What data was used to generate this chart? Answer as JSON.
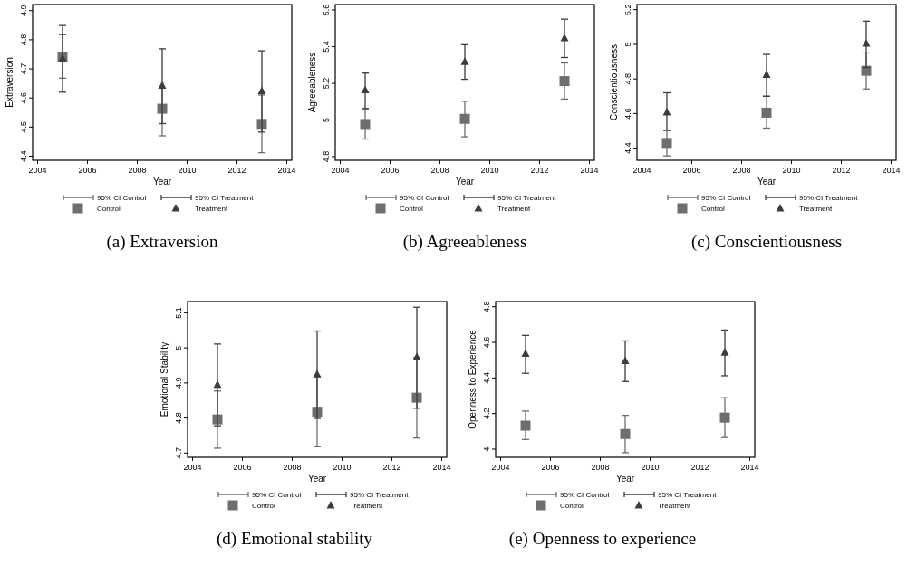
{
  "chart_data": [
    {
      "type": "scatter",
      "title": "(a) Extraversion",
      "xlabel": "Year",
      "ylabel": "Extraversion",
      "annotations": [
        "95% CI Control",
        "95% CI Treatment"
      ],
      "x": [
        2005,
        2009,
        2013
      ],
      "xlim": [
        2003.8,
        2014.2
      ],
      "xticks": [
        2004,
        2006,
        2008,
        2010,
        2012,
        2014
      ],
      "ylim": [
        4.386,
        4.921
      ],
      "yticks": [
        4.4,
        4.5,
        4.6,
        4.7,
        4.8,
        4.9
      ],
      "legend": "bottom",
      "series": [
        {
          "name": "Control",
          "color": "#6e6e6e",
          "marker": "square",
          "values": [
            4.742,
            4.563,
            4.511
          ],
          "errors": [
            [
              4.668,
              4.817
            ],
            [
              4.47,
              4.655
            ],
            [
              4.412,
              4.61
            ]
          ]
        },
        {
          "name": "Treatment",
          "color": "#3c3c3c",
          "marker": "triangle",
          "values": [
            4.737,
            4.643,
            4.624
          ],
          "errors": [
            [
              4.62,
              4.849
            ],
            [
              4.512,
              4.769
            ],
            [
              4.483,
              4.762
            ]
          ]
        }
      ]
    },
    {
      "type": "scatter",
      "title": "(b) Agreeableness",
      "xlabel": "Year",
      "ylabel": "Agreeableness",
      "annotations": [
        "95% CI Control",
        "95% CI Treatment"
      ],
      "x": [
        2005,
        2009,
        2013
      ],
      "xlim": [
        2003.8,
        2014.2
      ],
      "xticks": [
        2004,
        2006,
        2008,
        2010,
        2012,
        2014
      ],
      "ylim": [
        4.78,
        5.63
      ],
      "yticks": [
        4.8,
        5,
        5.2,
        5.4,
        5.6
      ],
      "legend": "bottom",
      "series": [
        {
          "name": "Control",
          "color": "#6e6e6e",
          "marker": "square",
          "values": [
            4.978,
            5.006,
            5.212
          ],
          "errors": [
            [
              4.896,
              5.062
            ],
            [
              4.908,
              5.102
            ],
            [
              5.114,
              5.311
            ]
          ]
        },
        {
          "name": "Treatment",
          "color": "#3c3c3c",
          "marker": "triangle",
          "values": [
            5.163,
            5.318,
            5.447
          ],
          "errors": [
            [
              5.062,
              5.256
            ],
            [
              5.222,
              5.411
            ],
            [
              5.341,
              5.55
            ]
          ]
        }
      ]
    },
    {
      "type": "scatter",
      "title": "(c) Conscientiousness",
      "xlabel": "Year",
      "ylabel": "Conscientiousness",
      "annotations": [
        "95% CI Control",
        "95% CI Treatment"
      ],
      "x": [
        2005,
        2009,
        2013
      ],
      "xlim": [
        2003.8,
        2014.2
      ],
      "xticks": [
        2004,
        2006,
        2008,
        2010,
        2012,
        2014
      ],
      "ylim": [
        4.33,
        5.23
      ],
      "yticks": [
        4.4,
        4.6,
        4.8,
        5,
        5.2
      ],
      "legend": "bottom",
      "series": [
        {
          "name": "Control",
          "color": "#6e6e6e",
          "marker": "square",
          "values": [
            4.43,
            4.605,
            4.847
          ],
          "errors": [
            [
              4.355,
              4.503
            ],
            [
              4.516,
              4.7
            ],
            [
              4.742,
              4.95
            ]
          ]
        },
        {
          "name": "Treatment",
          "color": "#3c3c3c",
          "marker": "triangle",
          "values": [
            4.607,
            4.825,
            5.005
          ],
          "errors": [
            [
              4.503,
              4.72
            ],
            [
              4.7,
              4.942
            ],
            [
              4.866,
              5.134
            ]
          ]
        }
      ]
    },
    {
      "type": "scatter",
      "title": "(d) Emotional stability",
      "xlabel": "Year",
      "ylabel": "Emotional Stability",
      "annotations": [
        "95% CI Control",
        "95% CI Treatment"
      ],
      "x": [
        2005,
        2009,
        2013
      ],
      "xlim": [
        2003.8,
        2014.2
      ],
      "xticks": [
        2004,
        2006,
        2008,
        2010,
        2012,
        2014
      ],
      "ylim": [
        4.688,
        5.132
      ],
      "yticks": [
        4.7,
        4.8,
        4.9,
        5,
        5.1
      ],
      "legend": "bottom",
      "series": [
        {
          "name": "Control",
          "color": "#6e6e6e",
          "marker": "square",
          "values": [
            4.796,
            4.818,
            4.858
          ],
          "errors": [
            [
              4.714,
              4.877
            ],
            [
              4.718,
              4.918
            ],
            [
              4.743,
              4.972
            ]
          ]
        },
        {
          "name": "Treatment",
          "color": "#3c3c3c",
          "marker": "triangle",
          "values": [
            4.895,
            4.925,
            4.974
          ],
          "errors": [
            [
              4.778,
              5.011
            ],
            [
              4.799,
              5.048
            ],
            [
              4.828,
              5.116
            ]
          ]
        }
      ]
    },
    {
      "type": "scatter",
      "title": "(e) Openness to experience",
      "xlabel": "Year",
      "ylabel": "Openness to Experience",
      "annotations": [
        "95% CI Control",
        "95% CI Treatment"
      ],
      "x": [
        2005,
        2009,
        2013
      ],
      "xlim": [
        2003.8,
        2014.2
      ],
      "xticks": [
        2004,
        2006,
        2008,
        2010,
        2012,
        2014
      ],
      "ylim": [
        3.954,
        4.829
      ],
      "yticks": [
        4,
        4.2,
        4.4,
        4.6,
        4.8
      ],
      "legend": "bottom",
      "series": [
        {
          "name": "Control",
          "color": "#6e6e6e",
          "marker": "square",
          "values": [
            4.132,
            4.085,
            4.177
          ],
          "errors": [
            [
              4.054,
              4.214
            ],
            [
              3.98,
              4.19
            ],
            [
              4.065,
              4.289
            ]
          ]
        },
        {
          "name": "Treatment",
          "color": "#3c3c3c",
          "marker": "triangle",
          "values": [
            4.537,
            4.496,
            4.543
          ],
          "errors": [
            [
              4.426,
              4.639
            ],
            [
              4.38,
              4.608
            ],
            [
              4.412,
              4.669
            ]
          ]
        }
      ]
    }
  ]
}
